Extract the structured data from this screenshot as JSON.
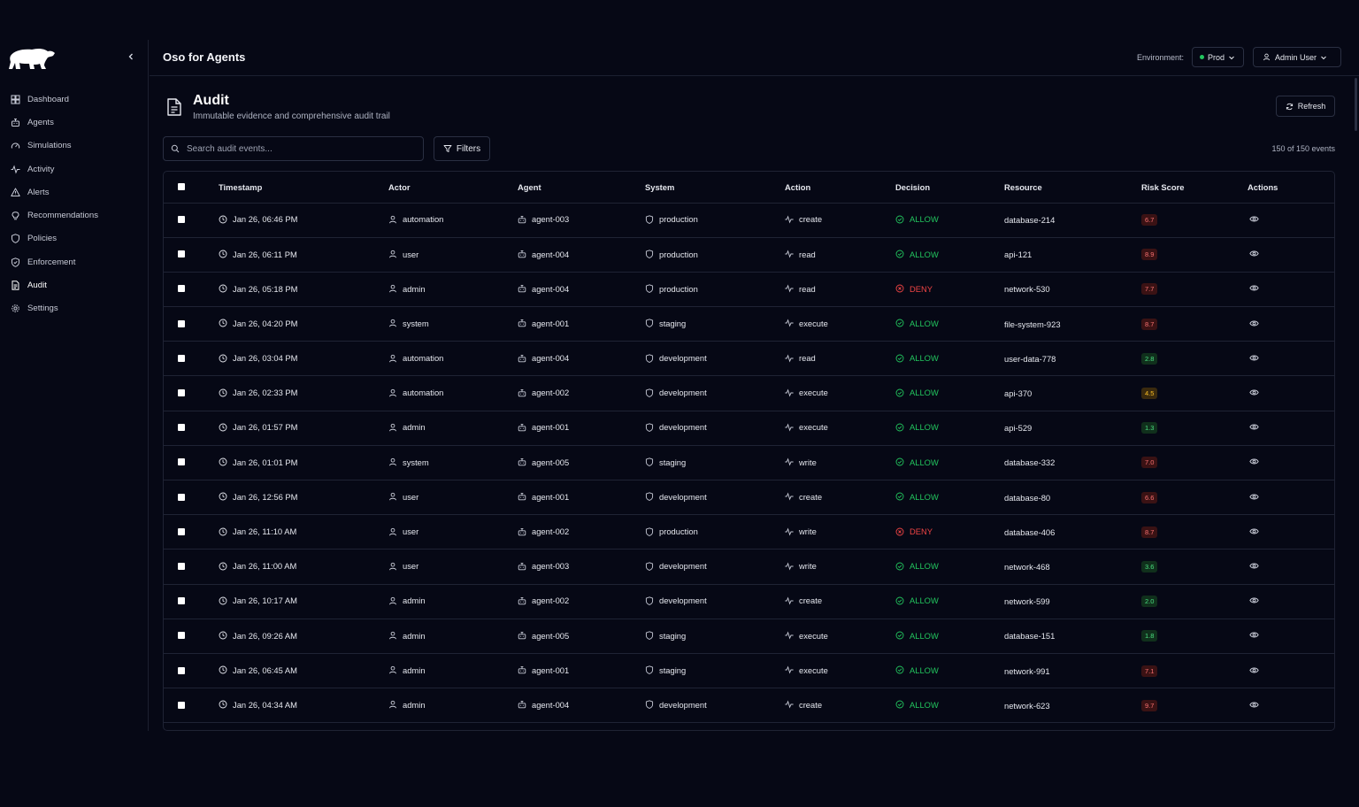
{
  "app": {
    "title": "Oso for Agents"
  },
  "header": {
    "env_label": "Environment:",
    "env_value": "Prod",
    "user_label": "Admin User"
  },
  "sidebar": {
    "items": [
      {
        "label": "Dashboard",
        "icon": "grid-icon"
      },
      {
        "label": "Agents",
        "icon": "bot-icon"
      },
      {
        "label": "Simulations",
        "icon": "gauge-icon"
      },
      {
        "label": "Activity",
        "icon": "activity-icon"
      },
      {
        "label": "Alerts",
        "icon": "alert-triangle-icon"
      },
      {
        "label": "Recommendations",
        "icon": "lightbulb-icon"
      },
      {
        "label": "Policies",
        "icon": "shield-icon"
      },
      {
        "label": "Enforcement",
        "icon": "shield-check-icon"
      },
      {
        "label": "Audit",
        "icon": "file-text-icon"
      },
      {
        "label": "Settings",
        "icon": "gear-icon"
      }
    ],
    "active": "Audit"
  },
  "page": {
    "title": "Audit",
    "subtitle": "Immutable evidence and comprehensive audit trail",
    "refresh_label": "Refresh"
  },
  "toolbar": {
    "search_placeholder": "Search audit events...",
    "filters_label": "Filters",
    "count_text": "150 of 150 events"
  },
  "table": {
    "columns": [
      "Timestamp",
      "Actor",
      "Agent",
      "System",
      "Action",
      "Decision",
      "Resource",
      "Risk Score",
      "Actions"
    ],
    "rows": [
      {
        "timestamp": "Jan 26, 06:46 PM",
        "actor": "automation",
        "agent": "agent-003",
        "system": "production",
        "action": "create",
        "decision": "ALLOW",
        "resource": "database-214",
        "risk": "6.7"
      },
      {
        "timestamp": "Jan 26, 06:11 PM",
        "actor": "user",
        "agent": "agent-004",
        "system": "production",
        "action": "read",
        "decision": "ALLOW",
        "resource": "api-121",
        "risk": "8.9"
      },
      {
        "timestamp": "Jan 26, 05:18 PM",
        "actor": "admin",
        "agent": "agent-004",
        "system": "production",
        "action": "read",
        "decision": "DENY",
        "resource": "network-530",
        "risk": "7.7"
      },
      {
        "timestamp": "Jan 26, 04:20 PM",
        "actor": "system",
        "agent": "agent-001",
        "system": "staging",
        "action": "execute",
        "decision": "ALLOW",
        "resource": "file-system-923",
        "risk": "8.7"
      },
      {
        "timestamp": "Jan 26, 03:04 PM",
        "actor": "automation",
        "agent": "agent-004",
        "system": "development",
        "action": "read",
        "decision": "ALLOW",
        "resource": "user-data-778",
        "risk": "2.8"
      },
      {
        "timestamp": "Jan 26, 02:33 PM",
        "actor": "automation",
        "agent": "agent-002",
        "system": "development",
        "action": "execute",
        "decision": "ALLOW",
        "resource": "api-370",
        "risk": "4.5"
      },
      {
        "timestamp": "Jan 26, 01:57 PM",
        "actor": "admin",
        "agent": "agent-001",
        "system": "development",
        "action": "execute",
        "decision": "ALLOW",
        "resource": "api-529",
        "risk": "1.3"
      },
      {
        "timestamp": "Jan 26, 01:01 PM",
        "actor": "system",
        "agent": "agent-005",
        "system": "staging",
        "action": "write",
        "decision": "ALLOW",
        "resource": "database-332",
        "risk": "7.0"
      },
      {
        "timestamp": "Jan 26, 12:56 PM",
        "actor": "user",
        "agent": "agent-001",
        "system": "development",
        "action": "create",
        "decision": "ALLOW",
        "resource": "database-80",
        "risk": "6.6"
      },
      {
        "timestamp": "Jan 26, 11:10 AM",
        "actor": "user",
        "agent": "agent-002",
        "system": "production",
        "action": "write",
        "decision": "DENY",
        "resource": "database-406",
        "risk": "8.7"
      },
      {
        "timestamp": "Jan 26, 11:00 AM",
        "actor": "user",
        "agent": "agent-003",
        "system": "development",
        "action": "write",
        "decision": "ALLOW",
        "resource": "network-468",
        "risk": "3.6"
      },
      {
        "timestamp": "Jan 26, 10:17 AM",
        "actor": "admin",
        "agent": "agent-002",
        "system": "development",
        "action": "create",
        "decision": "ALLOW",
        "resource": "network-599",
        "risk": "2.0"
      },
      {
        "timestamp": "Jan 26, 09:26 AM",
        "actor": "admin",
        "agent": "agent-005",
        "system": "staging",
        "action": "execute",
        "decision": "ALLOW",
        "resource": "database-151",
        "risk": "1.8"
      },
      {
        "timestamp": "Jan 26, 06:45 AM",
        "actor": "admin",
        "agent": "agent-001",
        "system": "staging",
        "action": "execute",
        "decision": "ALLOW",
        "resource": "network-991",
        "risk": "7.1"
      },
      {
        "timestamp": "Jan 26, 04:34 AM",
        "actor": "admin",
        "agent": "agent-004",
        "system": "development",
        "action": "create",
        "decision": "ALLOW",
        "resource": "network-623",
        "risk": "9.7"
      }
    ]
  },
  "colors": {
    "background": "#060815",
    "allow": "#22c55e",
    "deny": "#ef4444",
    "border": "#1f2334"
  }
}
